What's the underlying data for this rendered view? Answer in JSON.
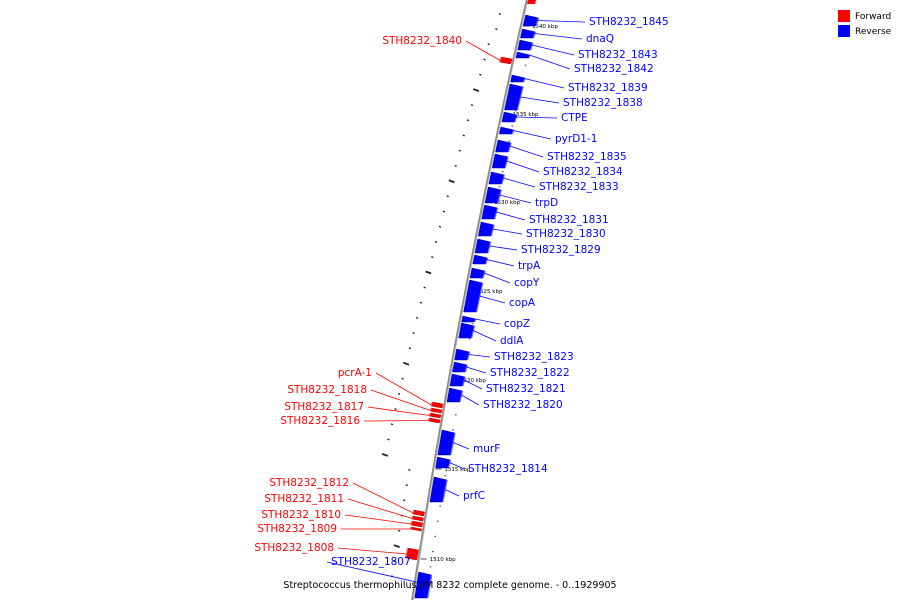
{
  "caption": "Streptococcus thermophilus JIM 8232 complete genome. - 0..1929905",
  "legend": [
    {
      "label": "Forward",
      "color": "#ff0000"
    },
    {
      "label": "Reverse",
      "color": "#0000ff"
    }
  ],
  "colors": {
    "forward": "#ff0000",
    "reverse": "#0000ff",
    "backbone": "#888888"
  },
  "ticks": [
    "1540 kbp",
    "1535 kbp",
    "1530 kbp",
    "1525 kbp",
    "1520 kbp",
    "1515 kbp",
    "1510 kbp"
  ],
  "genes": [
    {
      "name": "STH8232_1845",
      "strand": "reverse"
    },
    {
      "name": "dnaQ",
      "strand": "reverse"
    },
    {
      "name": "STH8232_1840",
      "strand": "forward"
    },
    {
      "name": "STH8232_1843",
      "strand": "reverse"
    },
    {
      "name": "STH8232_1842",
      "strand": "reverse"
    },
    {
      "name": "STH8232_1839",
      "strand": "reverse"
    },
    {
      "name": "STH8232_1838",
      "strand": "reverse"
    },
    {
      "name": "CTPE",
      "strand": "reverse"
    },
    {
      "name": "pyrD1-1",
      "strand": "reverse"
    },
    {
      "name": "STH8232_1835",
      "strand": "reverse"
    },
    {
      "name": "STH8232_1834",
      "strand": "reverse"
    },
    {
      "name": "STH8232_1833",
      "strand": "reverse"
    },
    {
      "name": "trpD",
      "strand": "reverse"
    },
    {
      "name": "STH8232_1831",
      "strand": "reverse"
    },
    {
      "name": "STH8232_1830",
      "strand": "reverse"
    },
    {
      "name": "STH8232_1829",
      "strand": "reverse"
    },
    {
      "name": "trpA",
      "strand": "reverse"
    },
    {
      "name": "copY",
      "strand": "reverse"
    },
    {
      "name": "copA",
      "strand": "reverse"
    },
    {
      "name": "copZ",
      "strand": "reverse"
    },
    {
      "name": "ddlA",
      "strand": "reverse"
    },
    {
      "name": "STH8232_1823",
      "strand": "reverse"
    },
    {
      "name": "STH8232_1822",
      "strand": "reverse"
    },
    {
      "name": "STH8232_1821",
      "strand": "reverse"
    },
    {
      "name": "STH8232_1820",
      "strand": "reverse"
    },
    {
      "name": "pcrA-1",
      "strand": "forward"
    },
    {
      "name": "STH8232_1818",
      "strand": "forward"
    },
    {
      "name": "STH8232_1817",
      "strand": "forward"
    },
    {
      "name": "STH8232_1816",
      "strand": "forward"
    },
    {
      "name": "murF",
      "strand": "reverse"
    },
    {
      "name": "STH8232_1814",
      "strand": "reverse"
    },
    {
      "name": "prfC",
      "strand": "reverse"
    },
    {
      "name": "STH8232_1812",
      "strand": "forward"
    },
    {
      "name": "STH8232_1811",
      "strand": "forward"
    },
    {
      "name": "STH8232_1810",
      "strand": "forward"
    },
    {
      "name": "STH8232_1809",
      "strand": "forward"
    },
    {
      "name": "STH8232_1808",
      "strand": "forward"
    },
    {
      "name": "STH8232_1807",
      "strand": "reverse"
    }
  ]
}
